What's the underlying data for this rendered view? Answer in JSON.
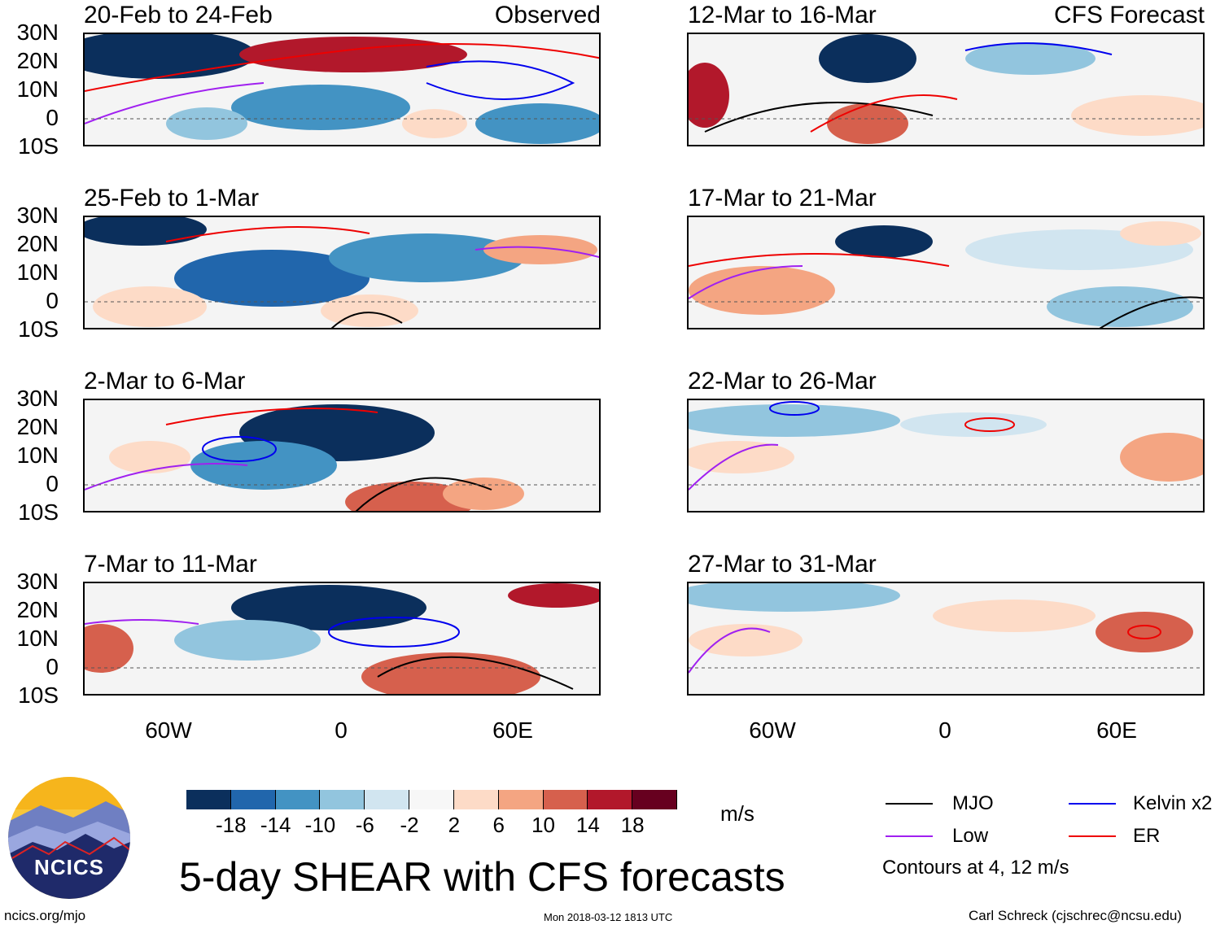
{
  "observed_label": "Observed",
  "forecast_label": "CFS Forecast",
  "panels_left": [
    "20-Feb to 24-Feb",
    "25-Feb to 1-Mar",
    "2-Mar to 6-Mar",
    "7-Mar to 11-Mar"
  ],
  "panels_right": [
    "12-Mar to 16-Mar",
    "17-Mar to 21-Mar",
    "22-Mar to 26-Mar",
    "27-Mar to 31-Mar"
  ],
  "lat_labels": [
    "30N",
    "20N",
    "10N",
    "0",
    "10S"
  ],
  "lon_labels": [
    "60W",
    "0",
    "60E"
  ],
  "colorbar": {
    "ticks": [
      "-18",
      "-14",
      "-10",
      "-6",
      "-2",
      "2",
      "6",
      "10",
      "14",
      "18"
    ],
    "units": "m/s",
    "colors": [
      "#0b2f5c",
      "#2166ac",
      "#4393c3",
      "#92c5de",
      "#d1e5f0",
      "#f7f7f7",
      "#fddbc7",
      "#f4a582",
      "#d6604d",
      "#b2182b",
      "#67001f"
    ]
  },
  "legend": {
    "mjo": "MJO",
    "kelvin": "Kelvin x2",
    "low": "Low",
    "er": "ER",
    "mjo_color": "#000000",
    "kelvin_color": "#0000ee",
    "low_color": "#a020f0",
    "er_color": "#ee0000",
    "contours_note": "Contours at 4, 12 m/s"
  },
  "main_title": "5-day SHEAR with CFS forecasts",
  "footer": {
    "url": "ncics.org/mjo",
    "timestamp": "Mon 2018-03-12 1813 UTC",
    "author": "Carl Schreck (cjschrec@ncsu.edu)"
  },
  "logo_text": "NCICS"
}
